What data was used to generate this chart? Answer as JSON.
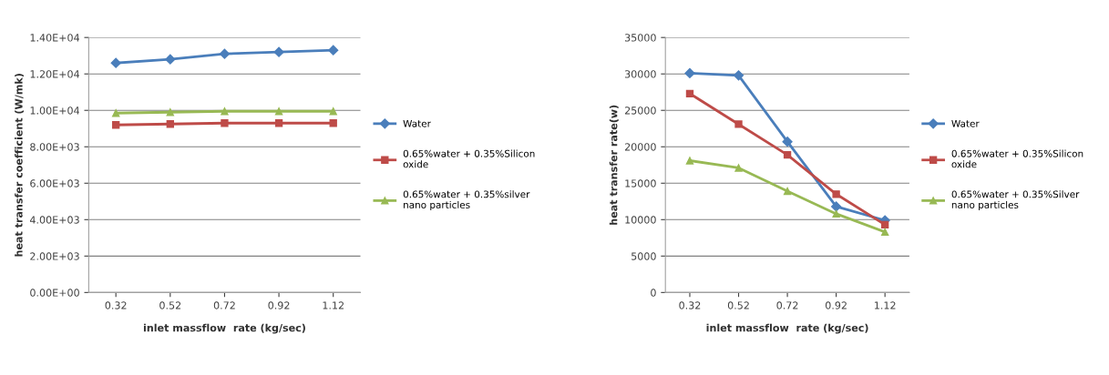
{
  "chart_data": [
    {
      "type": "line",
      "xlabel": "inlet massflow  rate (kg/sec)",
      "ylabel": "heat transfer coefficient (W/mk)",
      "categories": [
        "0.32",
        "0.52",
        "0.72",
        "0.92",
        "1.12"
      ],
      "series": [
        {
          "name": "Water",
          "color": "#4a7ebb",
          "marker": "diamond",
          "values": [
            12600,
            12800,
            13100,
            13200,
            13300
          ]
        },
        {
          "name": "0.65%water + 0.35%Silicon oxide",
          "color": "#be4b48",
          "marker": "square",
          "values": [
            9200,
            9250,
            9300,
            9300,
            9300
          ]
        },
        {
          "name": "0.65%water + 0.35%silver nano particles",
          "color": "#98b954",
          "marker": "triangle",
          "values": [
            9850,
            9900,
            9950,
            9950,
            9950
          ]
        }
      ],
      "ylim": [
        0,
        14000
      ],
      "yticks": [
        {
          "value": 0,
          "label": "0.00E+00"
        },
        {
          "value": 2000,
          "label": "2.00E+03"
        },
        {
          "value": 4000,
          "label": "4.00E+03"
        },
        {
          "value": 6000,
          "label": "6.00E+03"
        },
        {
          "value": 8000,
          "label": "8.00E+03"
        },
        {
          "value": 10000,
          "label": "1.00E+04"
        },
        {
          "value": 12000,
          "label": "1.20E+04"
        },
        {
          "value": 14000,
          "label": "1.40E+04"
        }
      ],
      "grid": "y",
      "legend": "right"
    },
    {
      "type": "line",
      "xlabel": "inlet massflow  rate (kg/sec)",
      "ylabel": "heat transfer rate(w)",
      "categories": [
        "0.32",
        "0.52",
        "0.72",
        "0.92",
        "1.12"
      ],
      "series": [
        {
          "name": "Water",
          "color": "#4a7ebb",
          "marker": "diamond",
          "values": [
            30100,
            29800,
            20700,
            11800,
            9900
          ]
        },
        {
          "name": "0.65%water + 0.35%Silicon oxide",
          "color": "#be4b48",
          "marker": "square",
          "values": [
            27300,
            23100,
            18900,
            13500,
            9300
          ]
        },
        {
          "name": "0.65%water + 0.35%Silver nano particles",
          "color": "#98b954",
          "marker": "triangle",
          "values": [
            18100,
            17100,
            13900,
            10800,
            8300
          ]
        }
      ],
      "ylim": [
        0,
        35000
      ],
      "yticks": [
        0,
        5000,
        10000,
        15000,
        20000,
        25000,
        30000,
        35000
      ],
      "grid": "y",
      "legend": "right"
    }
  ]
}
